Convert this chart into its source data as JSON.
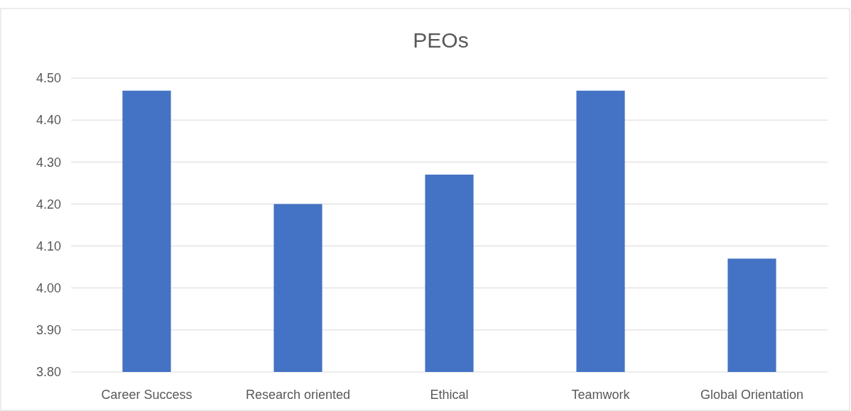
{
  "chart_data": {
    "type": "bar",
    "title": "PEOs",
    "categories": [
      "Career Success",
      "Research oriented",
      "Ethical",
      "Teamwork",
      "Global Orientation"
    ],
    "values": [
      4.47,
      4.2,
      4.27,
      4.47,
      4.07
    ],
    "color": "#4472c4",
    "ylim": [
      3.8,
      4.5
    ],
    "yticks": [
      {
        "value": 3.8,
        "label": "3.80"
      },
      {
        "value": 3.9,
        "label": "3.90"
      },
      {
        "value": 4.0,
        "label": "4.00"
      },
      {
        "value": 4.1,
        "label": "4.10"
      },
      {
        "value": 4.2,
        "label": "4.20"
      },
      {
        "value": 4.3,
        "label": "4.30"
      },
      {
        "value": 4.4,
        "label": "4.40"
      },
      {
        "value": 4.5,
        "label": "4.50"
      }
    ],
    "grid": "y"
  }
}
